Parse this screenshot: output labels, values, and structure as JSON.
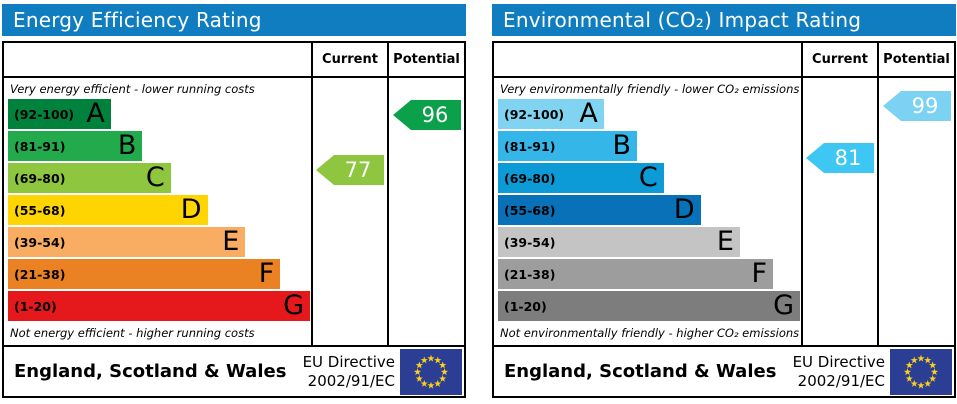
{
  "theme": {
    "header_bg": "#107dc1",
    "flag_bg": "#2c3e94",
    "star_color": "#fcd116"
  },
  "columns": {
    "current": "Current",
    "potential": "Potential"
  },
  "footer": {
    "region": "England, Scotland & Wales",
    "directive_line1": "EU Directive",
    "directive_line2": "2002/91/EC",
    "flag_icon": "eu-flag"
  },
  "chart_data": [
    {
      "type": "bar",
      "title": "Energy Efficiency Rating",
      "top_caption": "Very energy efficient - lower running costs",
      "bottom_caption": "Not energy efficient - higher running costs",
      "legend_position": "columns-right",
      "bands": [
        {
          "letter": "A",
          "range": "(92-100)",
          "min": 92,
          "max": 100,
          "color": "#00823d",
          "width_pct": 33.5
        },
        {
          "letter": "B",
          "range": "(81-91)",
          "min": 81,
          "max": 91,
          "color": "#23aa4c",
          "width_pct": 43.8
        },
        {
          "letter": "C",
          "range": "(69-80)",
          "min": 69,
          "max": 80,
          "color": "#8ec63f",
          "width_pct": 53.0
        },
        {
          "letter": "D",
          "range": "(55-68)",
          "min": 55,
          "max": 68,
          "color": "#fed500",
          "width_pct": 65.0
        },
        {
          "letter": "E",
          "range": "(39-54)",
          "min": 39,
          "max": 54,
          "color": "#f9ad63",
          "width_pct": 77.3
        },
        {
          "letter": "F",
          "range": "(21-38)",
          "min": 21,
          "max": 38,
          "color": "#ea8123",
          "width_pct": 88.7
        },
        {
          "letter": "G",
          "range": "(1-20)",
          "min": 1,
          "max": 20,
          "color": "#e5191c",
          "width_pct": 98.4
        }
      ],
      "current": {
        "value": 77,
        "color": "#8ec63f"
      },
      "potential": {
        "value": 96,
        "color": "#0ba14a"
      }
    },
    {
      "type": "bar",
      "title": "Environmental (CO₂) Impact Rating",
      "top_caption": "Very environmentally friendly - lower CO₂ emissions",
      "bottom_caption": "Not environmentally friendly - higher CO₂ emissions",
      "legend_position": "columns-right",
      "bands": [
        {
          "letter": "A",
          "range": "(92-100)",
          "min": 92,
          "max": 100,
          "color": "#80d3f1",
          "width_pct": 34.5
        },
        {
          "letter": "B",
          "range": "(81-91)",
          "min": 81,
          "max": 91,
          "color": "#35b6e9",
          "width_pct": 45.3
        },
        {
          "letter": "C",
          "range": "(69-80)",
          "min": 69,
          "max": 80,
          "color": "#0c9bd7",
          "width_pct": 54.0
        },
        {
          "letter": "D",
          "range": "(55-68)",
          "min": 55,
          "max": 68,
          "color": "#0871b7",
          "width_pct": 66.0
        },
        {
          "letter": "E",
          "range": "(39-54)",
          "min": 39,
          "max": 54,
          "color": "#c4c4c4",
          "width_pct": 78.8
        },
        {
          "letter": "F",
          "range": "(21-38)",
          "min": 21,
          "max": 38,
          "color": "#9d9d9d",
          "width_pct": 89.6
        },
        {
          "letter": "G",
          "range": "(1-20)",
          "min": 1,
          "max": 20,
          "color": "#7d7d7d",
          "width_pct": 98.4
        }
      ],
      "current": {
        "value": 81,
        "color": "#3ec7f3"
      },
      "potential": {
        "value": 99,
        "color": "#7cd2f3"
      }
    }
  ]
}
